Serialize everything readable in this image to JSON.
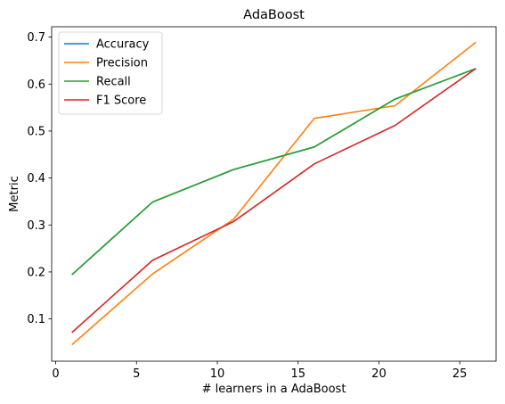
{
  "chart_data": {
    "type": "line",
    "title": "AdaBoost",
    "xlabel": "# learners in a AdaBoost",
    "ylabel": "Metric",
    "x": [
      1,
      6,
      11,
      16,
      21,
      26
    ],
    "xlim": [
      -0.25,
      27.25
    ],
    "ylim": [
      0.01,
      0.722
    ],
    "xticks": [
      0,
      5,
      10,
      15,
      20,
      25
    ],
    "yticks": [
      0.1,
      0.2,
      0.3,
      0.4,
      0.5,
      0.6,
      0.7
    ],
    "grid": false,
    "legend_position": "top-left",
    "series": [
      {
        "name": "Accuracy",
        "color": "#1f77b4",
        "values": [
          0.194,
          0.349,
          0.418,
          0.466,
          0.568,
          0.633
        ]
      },
      {
        "name": "Precision",
        "color": "#ff7f0e",
        "values": [
          0.045,
          0.196,
          0.312,
          0.527,
          0.554,
          0.689
        ]
      },
      {
        "name": "Recall",
        "color": "#2ca02c",
        "values": [
          0.194,
          0.349,
          0.418,
          0.466,
          0.568,
          0.633
        ]
      },
      {
        "name": "F1 Score",
        "color": "#d62728",
        "values": [
          0.071,
          0.225,
          0.307,
          0.43,
          0.512,
          0.633
        ]
      }
    ]
  }
}
